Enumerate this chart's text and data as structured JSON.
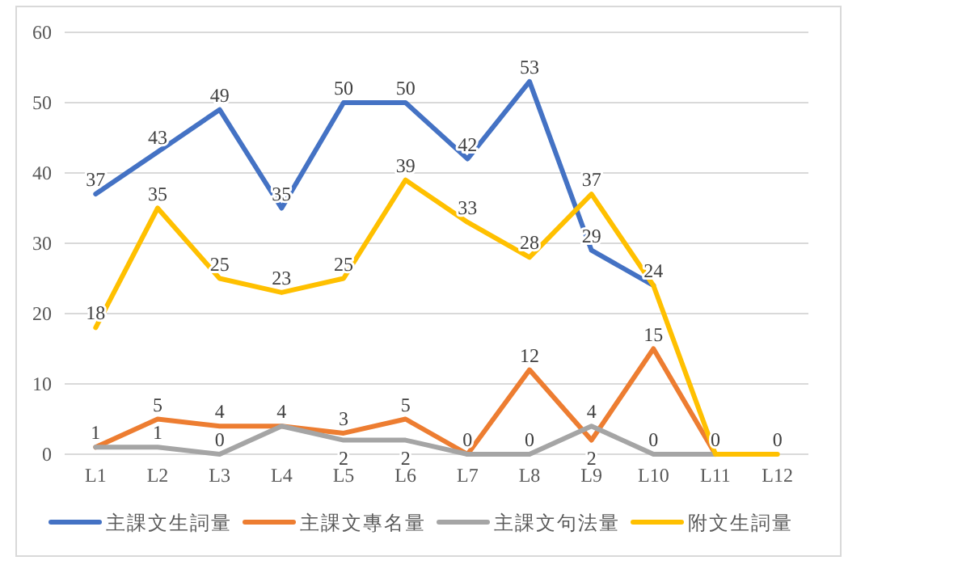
{
  "chart_data": {
    "type": "line",
    "categories": [
      "L1",
      "L2",
      "L3",
      "L4",
      "L5",
      "L6",
      "L7",
      "L8",
      "L9",
      "L10",
      "L11",
      "L12"
    ],
    "series": [
      {
        "name": "主課文生詞量",
        "color": "#4472c4",
        "values": [
          37,
          43,
          49,
          35,
          50,
          50,
          42,
          53,
          29,
          24,
          null,
          null
        ],
        "value_labels": [
          "37",
          "43",
          "49",
          "35",
          "50",
          "50",
          "42",
          "53",
          "29",
          "24",
          null,
          null
        ]
      },
      {
        "name": "主課文專名量",
        "color": "#ed7d31",
        "values": [
          1,
          5,
          4,
          4,
          3,
          5,
          0,
          12,
          2,
          15,
          0,
          null
        ],
        "value_labels": [
          "1",
          "5",
          "4",
          "4",
          "3",
          "5",
          "0",
          "12",
          "2",
          "15",
          "0",
          null
        ]
      },
      {
        "name": "主課文句法量",
        "color": "#a5a5a5",
        "values": [
          1,
          1,
          0,
          4,
          2,
          2,
          0,
          0,
          4,
          0,
          0,
          null
        ],
        "value_labels": [
          null,
          "1",
          "0",
          null,
          "2",
          "2",
          null,
          "0",
          "4",
          "0",
          null,
          null
        ]
      },
      {
        "name": "附文生詞量",
        "color": "#ffc000",
        "values": [
          18,
          35,
          25,
          23,
          25,
          39,
          33,
          28,
          37,
          24,
          0,
          0
        ],
        "value_labels": [
          "18",
          "35",
          "25",
          "23",
          "25",
          "39",
          "33",
          "28",
          "37",
          null,
          null,
          "0"
        ]
      }
    ],
    "ylim": [
      0,
      60
    ],
    "yticks": [
      0,
      10,
      20,
      30,
      40,
      50,
      60
    ],
    "grid": "y",
    "legend": "bottom",
    "line_style": "solid"
  }
}
